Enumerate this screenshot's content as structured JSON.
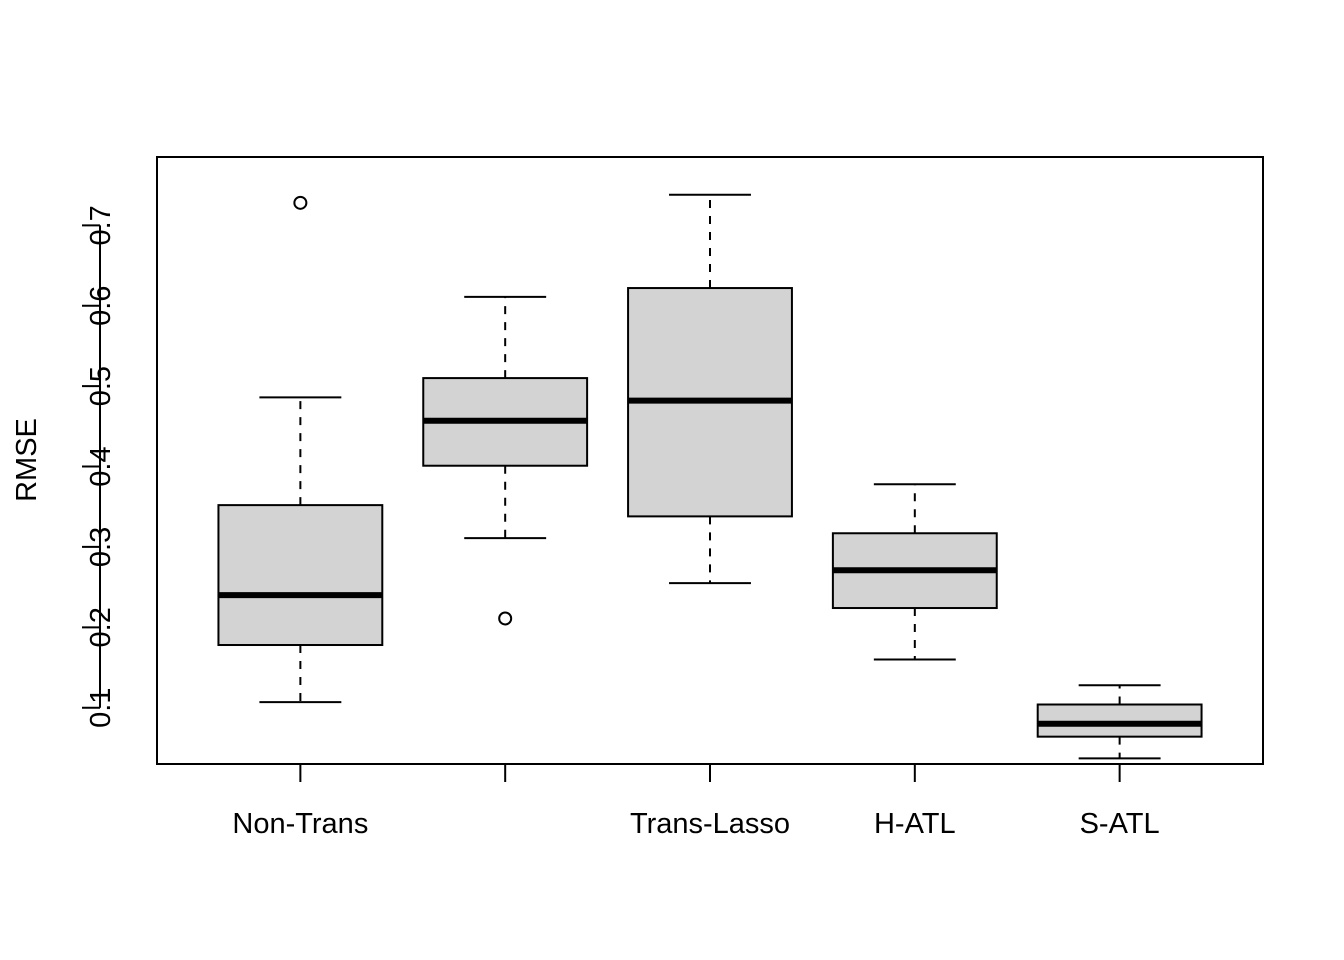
{
  "chart_data": {
    "type": "boxplot",
    "title": "",
    "xlabel": "",
    "ylabel": "RMSE",
    "ylim": [
      0.03,
      0.785
    ],
    "y_ticks": [
      "0.1",
      "0.2",
      "0.3",
      "0.4",
      "0.5",
      "0.6",
      "0.7"
    ],
    "categories": [
      "Non-Trans",
      "",
      "Trans-Lasso",
      "H-ATL",
      "S-ATL"
    ],
    "boxes": [
      {
        "label": "Non-Trans",
        "whisker_low": 0.107,
        "q1": 0.178,
        "median": 0.24,
        "q3": 0.352,
        "whisker_high": 0.486,
        "outliers": [
          0.728
        ]
      },
      {
        "label": "",
        "whisker_low": 0.311,
        "q1": 0.401,
        "median": 0.457,
        "q3": 0.51,
        "whisker_high": 0.611,
        "outliers": [
          0.211
        ]
      },
      {
        "label": "Trans-Lasso",
        "whisker_low": 0.255,
        "q1": 0.338,
        "median": 0.482,
        "q3": 0.622,
        "whisker_high": 0.738,
        "outliers": []
      },
      {
        "label": "H-ATL",
        "whisker_low": 0.16,
        "q1": 0.224,
        "median": 0.271,
        "q3": 0.317,
        "whisker_high": 0.378,
        "outliers": []
      },
      {
        "label": "S-ATL",
        "whisker_low": 0.037,
        "q1": 0.064,
        "median": 0.08,
        "q3": 0.104,
        "whisker_high": 0.128,
        "outliers": []
      }
    ],
    "box_fill": "#d3d3d3",
    "line_color": "#000000",
    "grid": false,
    "legend": "none"
  }
}
